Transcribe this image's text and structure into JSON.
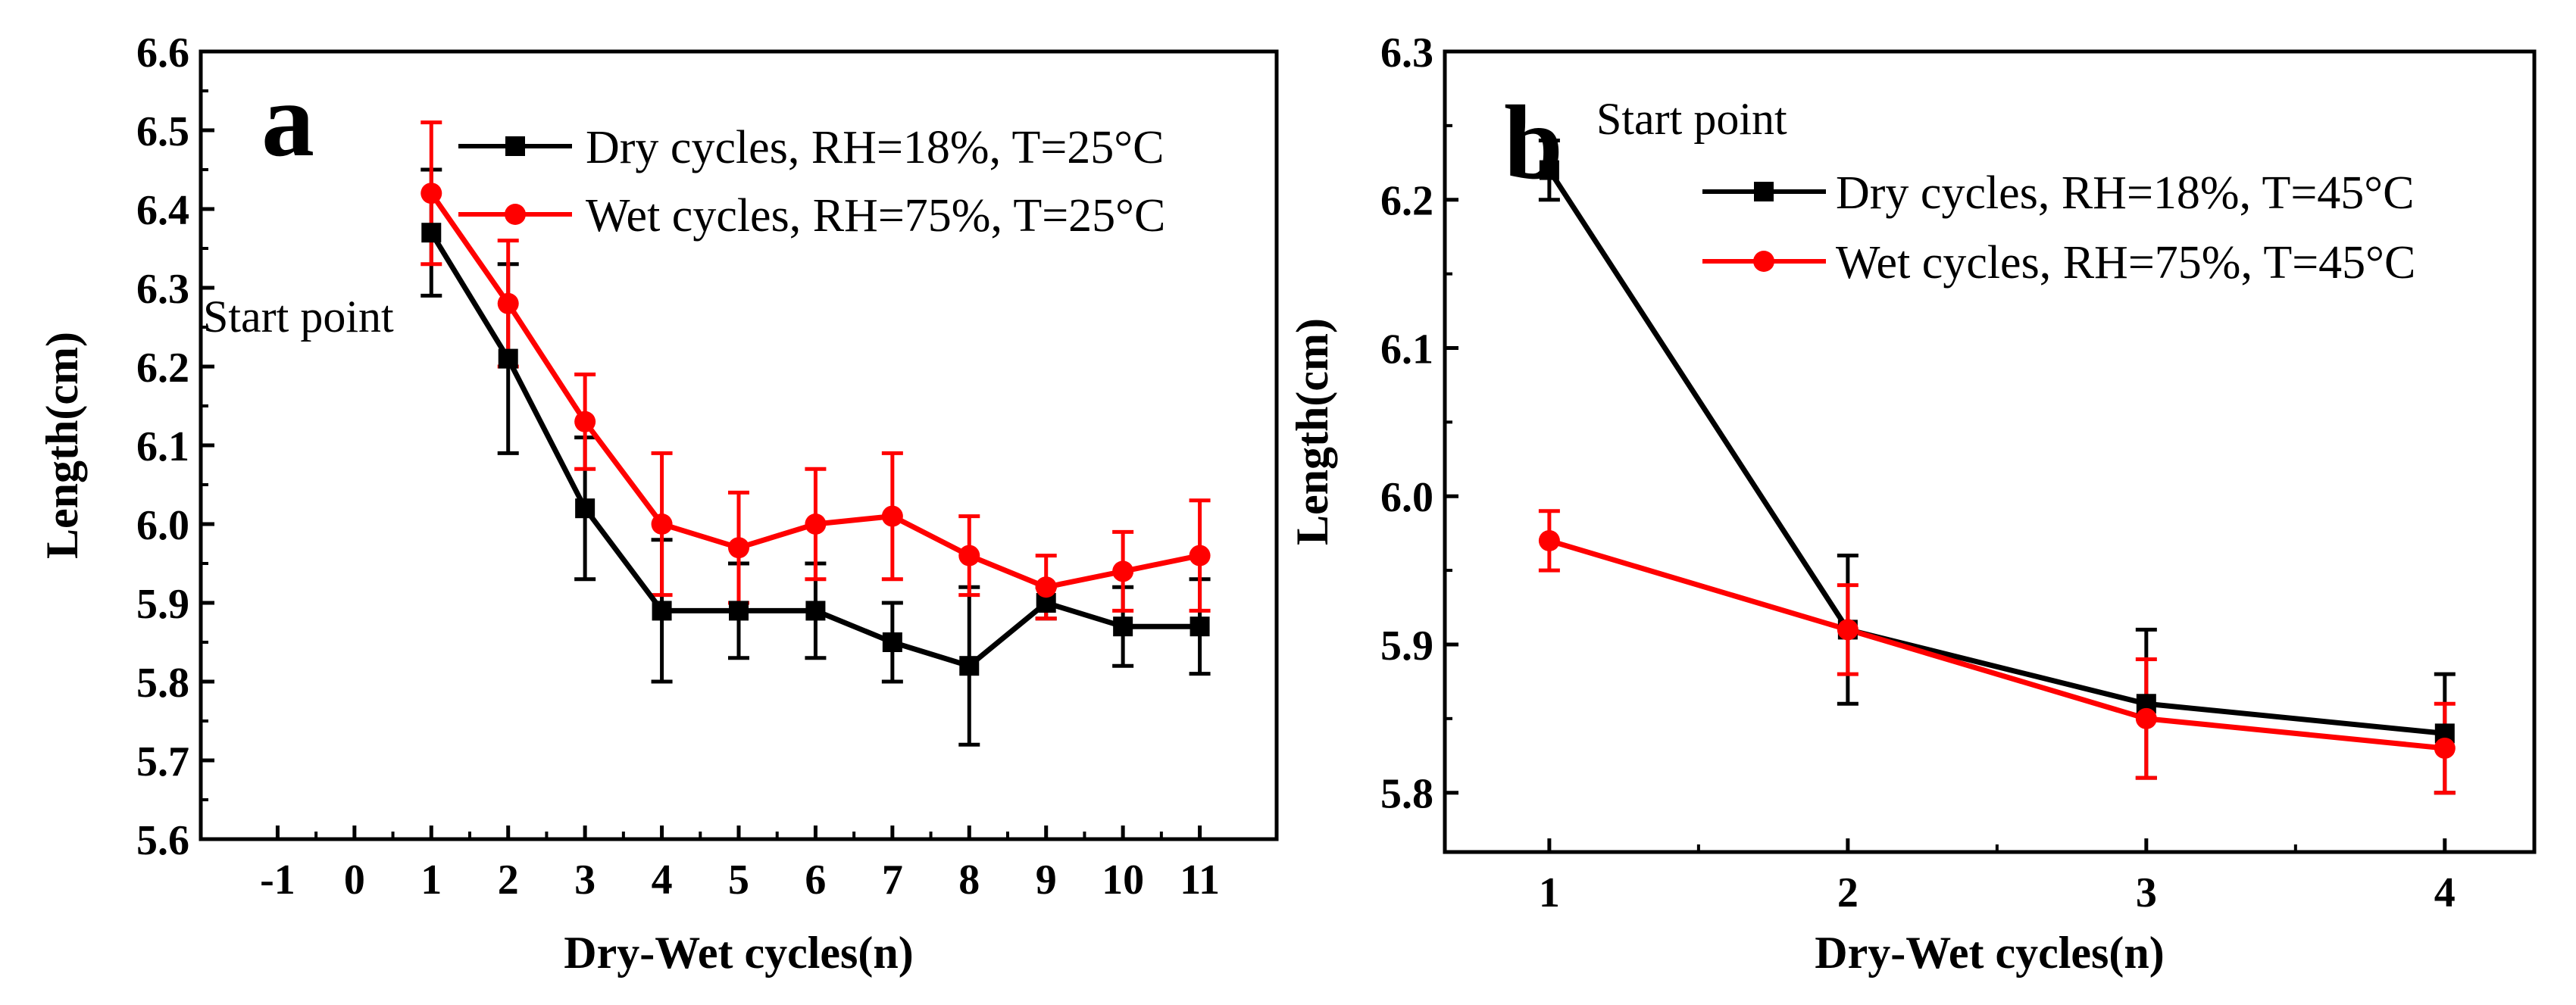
{
  "chart_data": [
    {
      "type": "line",
      "panel_label": "a",
      "xlabel": "Dry-Wet cycles(n)",
      "ylabel": "Length(cm)",
      "xlim": [
        -2,
        12
      ],
      "ylim": [
        5.6,
        6.6
      ],
      "xticks": [
        -1,
        0,
        1,
        2,
        3,
        4,
        5,
        6,
        7,
        8,
        9,
        10,
        11
      ],
      "xtick_labels": [
        "-1",
        "0",
        "1",
        "2",
        "3",
        "4",
        "5",
        "6",
        "7",
        "8",
        "9",
        "10",
        "11"
      ],
      "yticks": [
        5.6,
        5.7,
        5.8,
        5.9,
        6.0,
        6.1,
        6.2,
        6.3,
        6.4,
        6.5,
        6.6
      ],
      "ytick_labels": [
        "5.6",
        "5.7",
        "5.8",
        "5.9",
        "6.0",
        "6.1",
        "6.2",
        "6.3",
        "6.4",
        "6.5",
        "6.6"
      ],
      "legend_position": "top-right",
      "annotation": "Start point",
      "series": [
        {
          "name": "Dry cycles, RH=18%, T=25°C",
          "color": "#000000",
          "marker": "square",
          "x": [
            1,
            2,
            3,
            4,
            5,
            6,
            7,
            8,
            9,
            10,
            11
          ],
          "values": [
            6.37,
            6.21,
            6.02,
            5.89,
            5.89,
            5.89,
            5.85,
            5.82,
            5.9,
            5.87,
            5.87
          ],
          "error": [
            0.08,
            0.12,
            0.09,
            0.09,
            0.06,
            0.06,
            0.05,
            0.1,
            0.02,
            0.05,
            0.06
          ]
        },
        {
          "name": "Wet cycles, RH=75%, T=25°C",
          "color": "#ff0000",
          "marker": "circle",
          "x": [
            1,
            2,
            3,
            4,
            5,
            6,
            7,
            8,
            9,
            10,
            11
          ],
          "values": [
            6.42,
            6.28,
            6.13,
            6.0,
            5.97,
            6.0,
            6.01,
            5.96,
            5.92,
            5.94,
            5.96
          ],
          "error": [
            0.09,
            0.08,
            0.06,
            0.09,
            0.07,
            0.07,
            0.08,
            0.05,
            0.04,
            0.05,
            0.07
          ]
        }
      ]
    },
    {
      "type": "line",
      "panel_label": "b",
      "xlabel": "Dry-Wet cycles(n)",
      "ylabel": "Length(cm)",
      "xlim": [
        0.65,
        4.3
      ],
      "ylim": [
        5.76,
        6.3
      ],
      "xticks": [
        1,
        2,
        3,
        4
      ],
      "xtick_labels": [
        "1",
        "2",
        "3",
        "4"
      ],
      "yticks": [
        5.8,
        5.9,
        6.0,
        6.1,
        6.2,
        6.3
      ],
      "ytick_labels": [
        "5.8",
        "5.9",
        "6.0",
        "6.1",
        "6.2",
        "6.3"
      ],
      "legend_position": "top-right",
      "annotation": "Start point",
      "series": [
        {
          "name": "Dry cycles, RH=18%, T=45°C",
          "color": "#000000",
          "marker": "square",
          "x": [
            1,
            2,
            3,
            4
          ],
          "values": [
            6.22,
            5.91,
            5.86,
            5.84
          ],
          "error": [
            0.02,
            0.05,
            0.05,
            0.04
          ]
        },
        {
          "name": "Wet cycles, RH=75%, T=45°C",
          "color": "#ff0000",
          "marker": "circle",
          "x": [
            1,
            2,
            3,
            4
          ],
          "values": [
            5.97,
            5.91,
            5.85,
            5.83
          ],
          "error": [
            0.02,
            0.03,
            0.04,
            0.03
          ]
        }
      ]
    }
  ]
}
